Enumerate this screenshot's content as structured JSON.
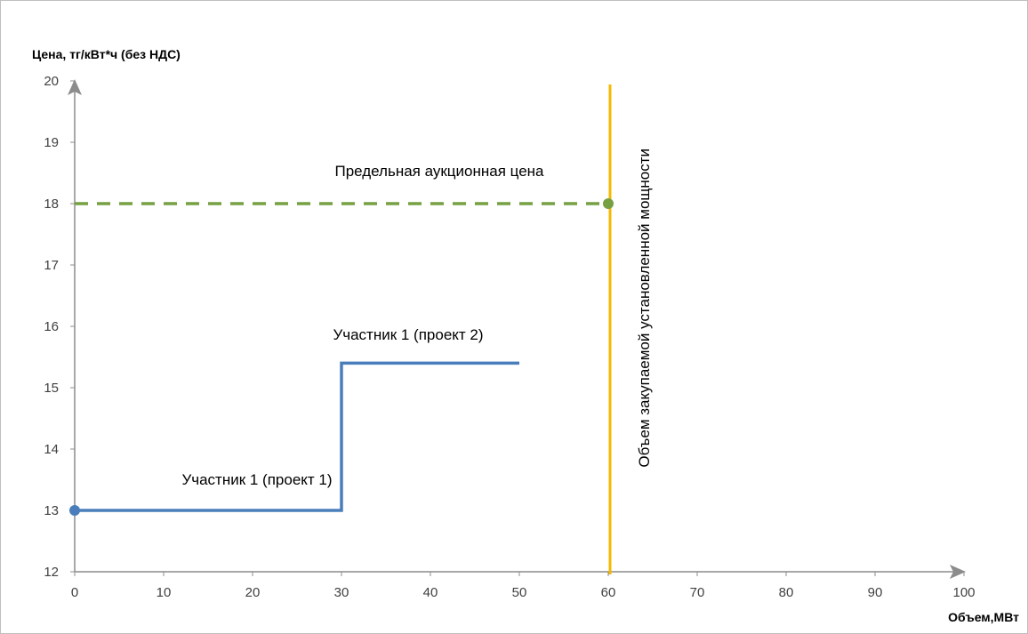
{
  "chart_data": {
    "type": "line",
    "ylabel": "Цена, тг/кВт*ч (без НДС)",
    "xlabel": "Объем,МВт",
    "xlim": [
      0,
      100
    ],
    "ylim": [
      12,
      20
    ],
    "x_ticks": [
      0,
      10,
      20,
      30,
      40,
      50,
      60,
      70,
      80,
      90,
      100
    ],
    "y_ticks": [
      12,
      13,
      14,
      15,
      16,
      17,
      18,
      19,
      20
    ],
    "grid": false,
    "legend": "none",
    "series": [
      {
        "name": "",
        "style": "solid",
        "color": "#4a7ebb",
        "points": [
          [
            0,
            13
          ],
          [
            30,
            13
          ],
          [
            30,
            15.4
          ],
          [
            50,
            15.4
          ]
        ]
      },
      {
        "name": "",
        "style": "dashed",
        "color": "#77a043",
        "points": [
          [
            0,
            18
          ],
          [
            60,
            18
          ]
        ]
      },
      {
        "name": "",
        "style": "vertical",
        "color": "#f5b800",
        "x": 60.2
      }
    ],
    "markers": [
      {
        "x": 0,
        "y": 13,
        "color": "#4a7ebb"
      },
      {
        "x": 60,
        "y": 18,
        "color": "#77a043"
      }
    ],
    "annotations": [
      {
        "text": "Предельная аукционная цена",
        "x": 41,
        "y": 18.45
      },
      {
        "text": "Участник 1 (проект 2)",
        "x": 37.5,
        "y": 15.78
      },
      {
        "text": "Участник 1 (проект 1)",
        "x": 20.5,
        "y": 13.42
      },
      {
        "text": "Объем закупаемой установленной мощности",
        "x": 64.6,
        "y": 16.3,
        "rotate": -90
      }
    ]
  }
}
